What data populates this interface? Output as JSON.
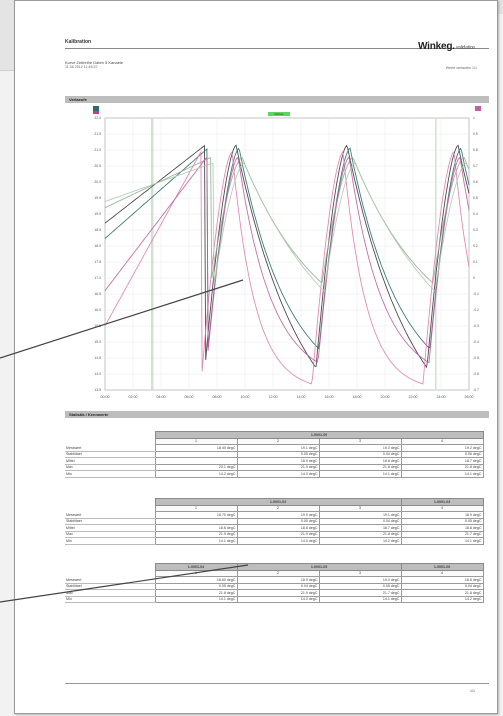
{
  "header": {
    "title": "Kalibration",
    "subtitle": "Kurve Zeitreihe Daten 5 Kanaele",
    "date": "11.06.2012  11:45:22",
    "right_text": "Werte verlaufen 1/1",
    "logo_main": "Winkeg.",
    "logo_sub": "validation"
  },
  "sections": {
    "chart_title": "Verlaeufe",
    "table_title": "Statistik / Kennwerte"
  },
  "chart": {
    "marker_label": "Marker",
    "x_ticks": [
      "00:00",
      "02:00",
      "04:00",
      "06:00",
      "08:00",
      "10:00",
      "12:00",
      "14:00",
      "16:00",
      "18:00",
      "20:00",
      "22:00",
      "24:00",
      "26:00"
    ],
    "y_ticks_left": [
      "22.0",
      "21.5",
      "21.0",
      "20.5",
      "20.0",
      "19.5",
      "19.0",
      "18.5",
      "18.0",
      "17.5",
      "17.0",
      "16.5",
      "16.0",
      "15.5",
      "15.0",
      "14.5",
      "14.0",
      "13.5"
    ],
    "y_ticks_right": [
      "1",
      "0.9",
      "0.8",
      "0.7",
      "0.6",
      "0.5",
      "0.4",
      "0.3",
      "0.2",
      "0.1",
      "0",
      "-0.1",
      "-0.2",
      "-0.3",
      "-0.4",
      "-0.5",
      "-0.6",
      "-0.7"
    ],
    "colors": {
      "bg": "#ffffff",
      "grid": "#e8e8e8",
      "marker": "#5cd65c",
      "series": [
        "#3a3a3a",
        "#2f6b6b",
        "#8fb08f",
        "#e07fb0",
        "#c060a0",
        "#b0c8b0"
      ]
    }
  },
  "tables": [
    {
      "groups": [
        {
          "title": "1-0001-00"
        }
      ],
      "cols": [
        "1",
        "2",
        "3",
        "4"
      ],
      "rows": [
        {
          "label": "Messwert",
          "values": [
            "18.40 degC",
            "19.1 degC",
            "19.0 degC",
            "19.2 degC"
          ]
        },
        {
          "label": "Stabilitaet",
          "values": [
            "",
            "0.05 degC",
            "0.04 degC",
            "0.06 degC"
          ]
        },
        {
          "label": "Mittel",
          "values": [
            "",
            "18.9 degC",
            "18.8 degC",
            "18.7 degC"
          ]
        },
        {
          "label": "Max",
          "values": [
            "20.1 degC",
            "21.9 degC",
            "21.8 degC",
            "21.8 degC"
          ]
        },
        {
          "label": "Min",
          "values": [
            "14.2 degC",
            "14.0 degC",
            "14.1 degC",
            "14.1 degC"
          ]
        }
      ]
    },
    {
      "groups": [
        {
          "title": "1-0001-02"
        },
        {
          "title": "1-0001-03"
        }
      ],
      "cols": [
        "1",
        "2",
        "3",
        "4"
      ],
      "rows": [
        {
          "label": "Messwert",
          "values": [
            "18.70 degC",
            "19.0 degC",
            "19.1 degC",
            "18.9 degC"
          ]
        },
        {
          "label": "Stabilitaet",
          "values": [
            "",
            "0.05 degC",
            "0.04 degC",
            "0.05 degC"
          ]
        },
        {
          "label": "Mittel",
          "values": [
            "18.6 degC",
            "18.8 degC",
            "18.7 degC",
            "18.8 degC"
          ]
        },
        {
          "label": "Max",
          "values": [
            "21.9 degC",
            "21.9 degC",
            "21.8 degC",
            "21.7 degC"
          ]
        },
        {
          "label": "Min",
          "values": [
            "14.1 degC",
            "14.0 degC",
            "14.2 degC",
            "14.1 degC"
          ]
        }
      ]
    },
    {
      "groups": [
        {
          "title": "1-0001-04"
        },
        {
          "title": "1-0001-05"
        },
        {
          "title": "1-0001-06"
        }
      ],
      "cols": [
        "1",
        "2",
        "3",
        "4"
      ],
      "rows": [
        {
          "label": "Messwert",
          "values": [
            "18.60 degC",
            "18.9 degC",
            "19.0 degC",
            "18.8 degC"
          ]
        },
        {
          "label": "Stabilitaet",
          "values": [
            "0.05 degC",
            "0.04 degC",
            "0.05 degC",
            "0.04 degC"
          ]
        },
        {
          "label": "Max",
          "values": [
            "21.8 degC",
            "21.9 degC",
            "21.7 degC",
            "21.8 degC"
          ]
        },
        {
          "label": "Min",
          "values": [
            "14.1 degC",
            "14.0 degC",
            "14.1 degC",
            "14.2 degC"
          ]
        }
      ]
    }
  ],
  "footer": {
    "page_number": "1/1"
  }
}
